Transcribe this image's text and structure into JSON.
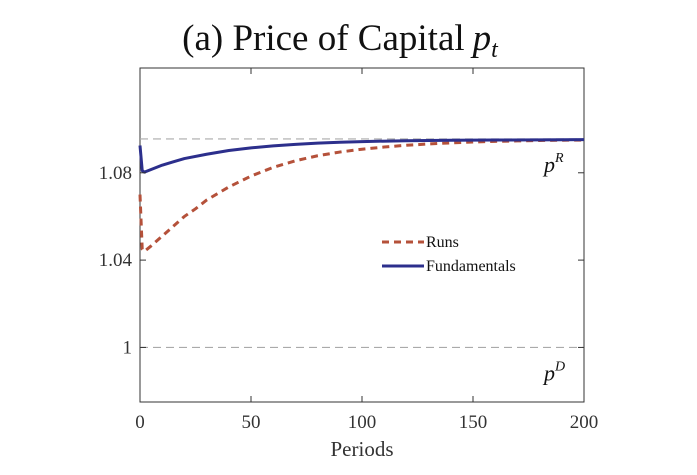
{
  "chart_data": {
    "type": "line",
    "title": "(a) Price of Capital",
    "title_symbol": "p",
    "title_symbol_sub": "t",
    "xlabel": "Periods",
    "ylabel": "",
    "xlim": [
      0,
      200
    ],
    "ylim": [
      0.975,
      1.128
    ],
    "x_ticks": [
      0,
      50,
      100,
      150,
      200
    ],
    "y_ticks": [
      1,
      1.04,
      1.08
    ],
    "y_tick_labels": [
      "1",
      "1.04",
      "1.08"
    ],
    "grid": false,
    "legend_position": "center-right",
    "reference_lines": [
      {
        "y": 1.0955,
        "label": "p",
        "label_sup": "R",
        "color": "#aaaaaa"
      },
      {
        "y": 1.0,
        "label": "p",
        "label_sup": "D",
        "color": "#aaaaaa"
      }
    ],
    "series": [
      {
        "name": "Runs",
        "color": "#b5513a",
        "style": "dashed",
        "x": [
          0,
          1,
          2,
          5,
          10,
          15,
          20,
          25,
          30,
          40,
          50,
          60,
          70,
          80,
          90,
          100,
          110,
          120,
          130,
          140,
          150,
          160,
          170,
          180,
          190,
          200
        ],
        "y": [
          1.07,
          1.045,
          1.044,
          1.0465,
          1.051,
          1.0555,
          1.06,
          1.0635,
          1.0675,
          1.0735,
          1.0785,
          1.0825,
          1.0855,
          1.0878,
          1.0895,
          1.0908,
          1.0918,
          1.0926,
          1.0932,
          1.0937,
          1.0941,
          1.0944,
          1.0946,
          1.0948,
          1.0949,
          1.095
        ]
      },
      {
        "name": "Fundamentals",
        "color": "#2c2f8c",
        "style": "solid",
        "x": [
          0,
          1,
          2,
          5,
          10,
          15,
          20,
          30,
          40,
          50,
          60,
          70,
          80,
          90,
          100,
          120,
          140,
          160,
          180,
          200
        ],
        "y": [
          1.0925,
          1.081,
          1.0803,
          1.0815,
          1.0835,
          1.085,
          1.0865,
          1.0885,
          1.0902,
          1.0914,
          1.0923,
          1.093,
          1.0936,
          1.094,
          1.0943,
          1.0947,
          1.0949,
          1.095,
          1.0951,
          1.0952
        ]
      }
    ]
  }
}
